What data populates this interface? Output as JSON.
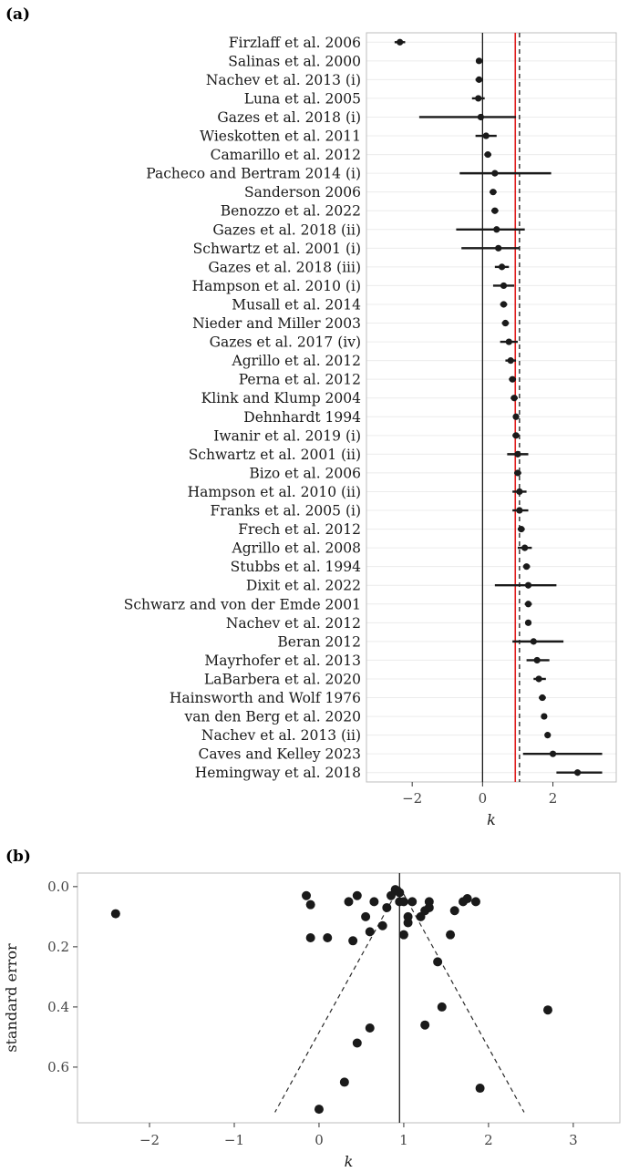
{
  "chart_data": [
    {
      "type": "scatter",
      "subtype": "forest-plot",
      "panel_label": "(a)",
      "xlabel": "k",
      "x_ticks": [
        -2,
        0,
        2
      ],
      "xlim": [
        -3.3,
        3.8
      ],
      "grid": true,
      "reference_lines": {
        "solid_black": 0,
        "solid_red": 0.93,
        "dashed_black": 1.05
      },
      "colors": {
        "point": "#1a1a1a",
        "error_bar": "#1a1a1a",
        "red_line": "#e02020",
        "zero_line": "#1a1a1a",
        "dashed_line": "#1a1a1a",
        "grid": "#ececec",
        "panel_border": "#bdbdbd",
        "tick_label": "#444444"
      },
      "studies": [
        {
          "label": "Firzlaff et al. 2006",
          "k": -2.35,
          "ci_low": -2.5,
          "ci_high": -2.2
        },
        {
          "label": "Salinas et al. 2000",
          "k": -0.1,
          "ci_low": -0.18,
          "ci_high": -0.02
        },
        {
          "label": "Nachev et al. 2013 (i)",
          "k": -0.1,
          "ci_low": -0.2,
          "ci_high": 0.0
        },
        {
          "label": "Luna et al. 2005",
          "k": -0.12,
          "ci_low": -0.3,
          "ci_high": 0.06
        },
        {
          "label": "Gazes et al. 2018 (i)",
          "k": -0.05,
          "ci_low": -1.8,
          "ci_high": 0.95
        },
        {
          "label": "Wieskotten et al. 2011",
          "k": 0.1,
          "ci_low": -0.2,
          "ci_high": 0.4
        },
        {
          "label": "Camarillo et al. 2012",
          "k": 0.15,
          "ci_low": 0.05,
          "ci_high": 0.25
        },
        {
          "label": "Pacheco and Bertram 2014 (i)",
          "k": 0.35,
          "ci_low": -0.65,
          "ci_high": 1.95
        },
        {
          "label": "Sanderson 2006",
          "k": 0.3,
          "ci_low": 0.2,
          "ci_high": 0.4
        },
        {
          "label": "Benozzo et al. 2022",
          "k": 0.35,
          "ci_low": 0.25,
          "ci_high": 0.45
        },
        {
          "label": "Gazes et al. 2018 (ii)",
          "k": 0.4,
          "ci_low": -0.75,
          "ci_high": 1.2
        },
        {
          "label": "Schwartz et al. 2001 (i)",
          "k": 0.45,
          "ci_low": -0.6,
          "ci_high": 1.05
        },
        {
          "label": "Gazes et al. 2018 (iii)",
          "k": 0.55,
          "ci_low": 0.35,
          "ci_high": 0.75
        },
        {
          "label": "Hampson et al. 2010 (i)",
          "k": 0.6,
          "ci_low": 0.3,
          "ci_high": 0.9
        },
        {
          "label": "Musall et al. 2014",
          "k": 0.6,
          "ci_low": 0.5,
          "ci_high": 0.7
        },
        {
          "label": "Nieder and Miller 2003",
          "k": 0.65,
          "ci_low": 0.55,
          "ci_high": 0.75
        },
        {
          "label": "Gazes et al. 2017 (iv)",
          "k": 0.75,
          "ci_low": 0.5,
          "ci_high": 1.0
        },
        {
          "label": "Agrillo et al. 2012",
          "k": 0.8,
          "ci_low": 0.65,
          "ci_high": 0.95
        },
        {
          "label": "Perna et al. 2012",
          "k": 0.85,
          "ci_low": 0.75,
          "ci_high": 0.95
        },
        {
          "label": "Klink and Klump 2004",
          "k": 0.9,
          "ci_low": 0.8,
          "ci_high": 1.0
        },
        {
          "label": "Dehnhardt 1994",
          "k": 0.95,
          "ci_low": 0.88,
          "ci_high": 1.02
        },
        {
          "label": "Iwanir et al. 2019 (i)",
          "k": 0.95,
          "ci_low": 0.85,
          "ci_high": 1.05
        },
        {
          "label": "Schwartz et al. 2001 (ii)",
          "k": 1.0,
          "ci_low": 0.7,
          "ci_high": 1.3
        },
        {
          "label": "Bizo et al. 2006",
          "k": 1.0,
          "ci_low": 0.9,
          "ci_high": 1.1
        },
        {
          "label": "Hampson et al. 2010 (ii)",
          "k": 1.05,
          "ci_low": 0.85,
          "ci_high": 1.25
        },
        {
          "label": "Franks et al. 2005 (i)",
          "k": 1.05,
          "ci_low": 0.85,
          "ci_high": 1.3
        },
        {
          "label": "Frech et al. 2012",
          "k": 1.1,
          "ci_low": 1.0,
          "ci_high": 1.2
        },
        {
          "label": "Agrillo et al. 2008",
          "k": 1.2,
          "ci_low": 1.0,
          "ci_high": 1.4
        },
        {
          "label": "Stubbs et al. 1994",
          "k": 1.25,
          "ci_low": 1.15,
          "ci_high": 1.35
        },
        {
          "label": "Dixit et al. 2022",
          "k": 1.3,
          "ci_low": 0.35,
          "ci_high": 2.1
        },
        {
          "label": "Schwarz and von der Emde 2001",
          "k": 1.3,
          "ci_low": 1.2,
          "ci_high": 1.4
        },
        {
          "label": "Nachev et al. 2012",
          "k": 1.3,
          "ci_low": 1.22,
          "ci_high": 1.38
        },
        {
          "label": "Beran 2012",
          "k": 1.45,
          "ci_low": 0.85,
          "ci_high": 2.3
        },
        {
          "label": "Mayrhofer et al. 2013",
          "k": 1.55,
          "ci_low": 1.25,
          "ci_high": 1.9
        },
        {
          "label": "LaBarbera et al. 2020",
          "k": 1.6,
          "ci_low": 1.45,
          "ci_high": 1.8
        },
        {
          "label": "Hainsworth and Wolf 1976",
          "k": 1.7,
          "ci_low": 1.6,
          "ci_high": 1.8
        },
        {
          "label": "van den Berg et al. 2020",
          "k": 1.75,
          "ci_low": 1.67,
          "ci_high": 1.83
        },
        {
          "label": "Nachev et al. 2013 (ii)",
          "k": 1.85,
          "ci_low": 1.78,
          "ci_high": 1.92
        },
        {
          "label": "Caves and Kelley 2023",
          "k": 2.0,
          "ci_low": 1.15,
          "ci_high": 3.4
        },
        {
          "label": "Hemingway et al. 2018",
          "k": 2.7,
          "ci_low": 2.1,
          "ci_high": 3.4
        }
      ]
    },
    {
      "type": "scatter",
      "subtype": "funnel-plot",
      "panel_label": "(b)",
      "xlabel": "k",
      "ylabel": "standard error",
      "x_ticks": [
        -2,
        -1,
        0,
        1,
        2,
        3
      ],
      "y_ticks": [
        0.0,
        0.2,
        0.4,
        0.6
      ],
      "xlim": [
        -2.85,
        3.55
      ],
      "ylim": [
        -0.045,
        0.785
      ],
      "y_axis_reversed": true,
      "grid": false,
      "center_line": 0.95,
      "funnel": {
        "apex_se": 0.0,
        "max_se": 0.75,
        "multiplier": 1.96
      },
      "colors": {
        "point": "#1a1a1a",
        "center_line": "#1a1a1a",
        "funnel_line": "#2a2a2a",
        "panel_border": "#bdbdbd",
        "tick_label": "#444444"
      },
      "points": [
        {
          "k": -2.4,
          "se": 0.09
        },
        {
          "k": -0.15,
          "se": 0.03
        },
        {
          "k": -0.1,
          "se": 0.06
        },
        {
          "k": -0.1,
          "se": 0.17
        },
        {
          "k": 0.0,
          "se": 0.74
        },
        {
          "k": 0.1,
          "se": 0.17
        },
        {
          "k": 0.3,
          "se": 0.65
        },
        {
          "k": 0.35,
          "se": 0.05
        },
        {
          "k": 0.4,
          "se": 0.18
        },
        {
          "k": 0.45,
          "se": 0.03
        },
        {
          "k": 0.45,
          "se": 0.52
        },
        {
          "k": 0.55,
          "se": 0.1
        },
        {
          "k": 0.6,
          "se": 0.15
        },
        {
          "k": 0.6,
          "se": 0.47
        },
        {
          "k": 0.65,
          "se": 0.05
        },
        {
          "k": 0.75,
          "se": 0.13
        },
        {
          "k": 0.8,
          "se": 0.07
        },
        {
          "k": 0.85,
          "se": 0.03
        },
        {
          "k": 0.9,
          "se": 0.01
        },
        {
          "k": 0.95,
          "se": 0.02
        },
        {
          "k": 0.95,
          "se": 0.05
        },
        {
          "k": 1.0,
          "se": 0.05
        },
        {
          "k": 1.0,
          "se": 0.16
        },
        {
          "k": 1.05,
          "se": 0.1
        },
        {
          "k": 1.05,
          "se": 0.12
        },
        {
          "k": 1.1,
          "se": 0.05
        },
        {
          "k": 1.2,
          "se": 0.1
        },
        {
          "k": 1.25,
          "se": 0.08
        },
        {
          "k": 1.25,
          "se": 0.46
        },
        {
          "k": 1.3,
          "se": 0.05
        },
        {
          "k": 1.3,
          "se": 0.07
        },
        {
          "k": 1.4,
          "se": 0.25
        },
        {
          "k": 1.45,
          "se": 0.4
        },
        {
          "k": 1.55,
          "se": 0.16
        },
        {
          "k": 1.6,
          "se": 0.08
        },
        {
          "k": 1.7,
          "se": 0.05
        },
        {
          "k": 1.75,
          "se": 0.04
        },
        {
          "k": 1.85,
          "se": 0.05
        },
        {
          "k": 1.9,
          "se": 0.67
        },
        {
          "k": 2.7,
          "se": 0.41
        }
      ]
    }
  ]
}
